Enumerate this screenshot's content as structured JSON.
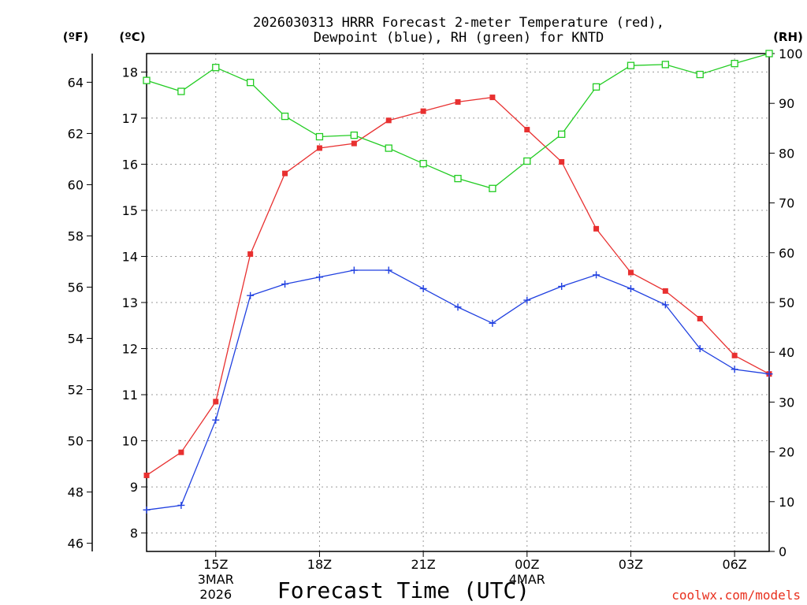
{
  "chart_data": {
    "type": "line",
    "title_lines": [
      "2026030313 HRRR Forecast 2-meter Temperature (red),",
      "Dewpoint (blue), RH (green) for KNTD"
    ],
    "xlabel": "Forecast Time (UTC)",
    "credit": "coolwx.com/models",
    "units": {
      "fahrenheit": "(ºF)",
      "celsius": "(ºC)",
      "rh": "(RH)"
    },
    "x_hours": [
      13,
      14,
      15,
      16,
      17,
      18,
      19,
      20,
      21,
      22,
      23,
      24,
      25,
      26,
      27,
      28,
      29,
      30,
      31
    ],
    "xlim": [
      13,
      31
    ],
    "x_ticks": [
      {
        "hour": 15,
        "lines": [
          "15Z",
          "3MAR",
          "2026"
        ]
      },
      {
        "hour": 18,
        "lines": [
          "18Z"
        ]
      },
      {
        "hour": 21,
        "lines": [
          "21Z"
        ]
      },
      {
        "hour": 24,
        "lines": [
          "00Z",
          "4MAR"
        ]
      },
      {
        "hour": 27,
        "lines": [
          "03Z"
        ]
      },
      {
        "hour": 30,
        "lines": [
          "06Z"
        ]
      }
    ],
    "celsius_axis": {
      "range": [
        7.6,
        18.4
      ],
      "ticks": [
        8,
        9,
        10,
        11,
        12,
        13,
        14,
        15,
        16,
        17,
        18
      ]
    },
    "fahrenheit_ticks": [
      46,
      48,
      50,
      52,
      54,
      56,
      58,
      60,
      62,
      64
    ],
    "rh_axis": {
      "range": [
        0,
        100
      ],
      "ticks": [
        0,
        10,
        20,
        30,
        40,
        50,
        60,
        70,
        80,
        90,
        100
      ]
    },
    "series": [
      {
        "name": "2-meter Temperature",
        "axis": "celsius",
        "color": "#e83030",
        "marker": "filled-square",
        "values": [
          9.25,
          9.75,
          10.85,
          14.05,
          15.8,
          16.35,
          16.45,
          16.95,
          17.15,
          17.35,
          17.45,
          16.75,
          16.05,
          14.6,
          13.65,
          13.25,
          12.65,
          11.85,
          11.45
        ]
      },
      {
        "name": "Dewpoint",
        "axis": "celsius",
        "color": "#2040e0",
        "marker": "plus",
        "values": [
          8.5,
          8.6,
          10.45,
          13.15,
          13.4,
          13.55,
          13.7,
          13.7,
          13.3,
          12.9,
          12.55,
          13.05,
          13.35,
          13.6,
          13.3,
          12.95,
          12.0,
          11.55,
          11.45
        ]
      },
      {
        "name": "RH",
        "axis": "rh",
        "color": "#22cc22",
        "marker": "open-square",
        "values": [
          94.6,
          92.4,
          97.2,
          94.2,
          87.4,
          83.3,
          83.6,
          81.0,
          77.9,
          74.9,
          72.9,
          78.4,
          83.8,
          93.3,
          97.6,
          97.8,
          95.8,
          98.0,
          100.0
        ]
      }
    ]
  }
}
